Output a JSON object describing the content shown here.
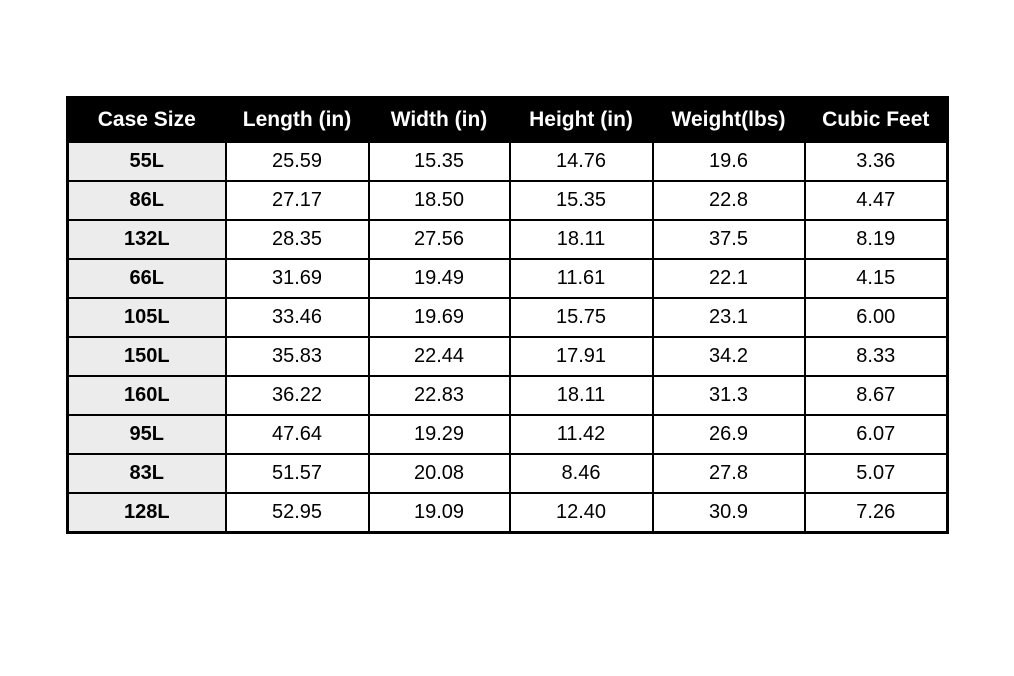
{
  "chart_data": {
    "type": "table",
    "title": "",
    "columns": [
      "Case Size",
      "Length (in)",
      "Width (in)",
      "Height (in)",
      "Weight(lbs)",
      "Cubic Feet"
    ],
    "rows": [
      [
        "55L",
        "25.59",
        "15.35",
        "14.76",
        "19.6",
        "3.36"
      ],
      [
        "86L",
        "27.17",
        "18.50",
        "15.35",
        "22.8",
        "4.47"
      ],
      [
        "132L",
        "28.35",
        "27.56",
        "18.11",
        "37.5",
        "8.19"
      ],
      [
        "66L",
        "31.69",
        "19.49",
        "11.61",
        "22.1",
        "4.15"
      ],
      [
        "105L",
        "33.46",
        "19.69",
        "15.75",
        "23.1",
        "6.00"
      ],
      [
        "150L",
        "35.83",
        "22.44",
        "17.91",
        "34.2",
        "8.33"
      ],
      [
        "160L",
        "36.22",
        "22.83",
        "18.11",
        "31.3",
        "8.67"
      ],
      [
        "95L",
        "47.64",
        "19.29",
        "11.42",
        "26.9",
        "6.07"
      ],
      [
        "83L",
        "51.57",
        "20.08",
        "8.46",
        "27.8",
        "5.07"
      ],
      [
        "128L",
        "52.95",
        "19.09",
        "12.40",
        "30.9",
        "7.26"
      ]
    ]
  },
  "colors": {
    "header_bg": "#000000",
    "header_text": "#ffffff",
    "row_label_bg": "#ececec",
    "cell_bg": "#ffffff",
    "border": "#000000"
  }
}
